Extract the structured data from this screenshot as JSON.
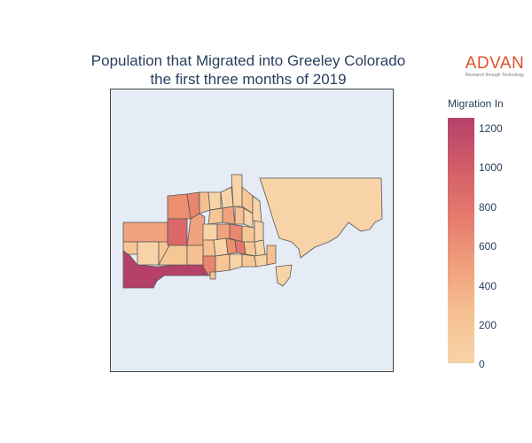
{
  "title_line1": "Population that Migrated into Greeley Colorado",
  "title_line2": "the first three months of 2019",
  "logo": {
    "name": "ADVAN",
    "tagline": "Research through Technology"
  },
  "colorbar": {
    "title": "Migration In",
    "ticks": [
      "1200",
      "1000",
      "800",
      "600",
      "400",
      "200",
      "0"
    ],
    "colors": [
      "#f6d3a6",
      "#f6c192",
      "#f09f7c",
      "#e57a6d",
      "#d15d68",
      "#b5416a"
    ]
  }
}
